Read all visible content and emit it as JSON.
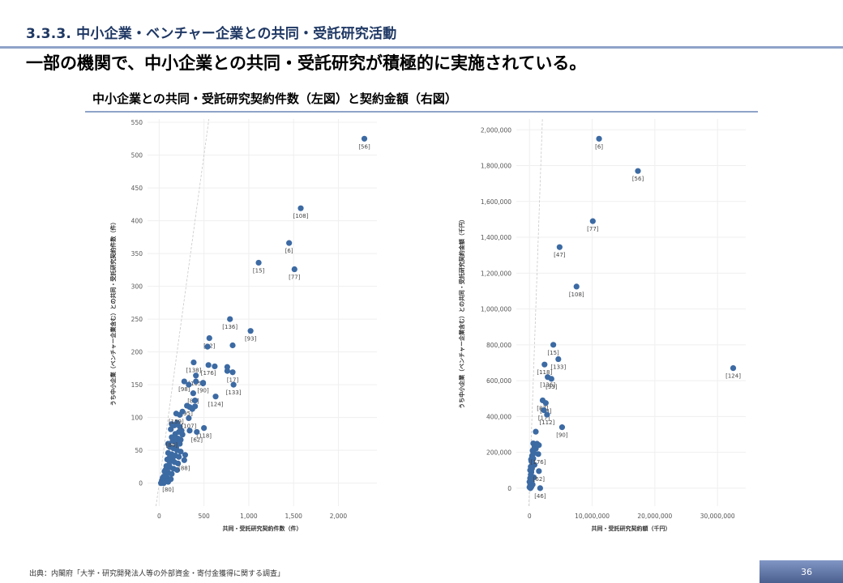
{
  "header": {
    "section_title": "3.3.3. 中小企業・ベンチャー企業との共同・受託研究活動",
    "headline": "一部の機関で、中小企業との共同・受託研究が積極的に実施されている。",
    "figure_caption": "中小企業との共同・受託研究契約件数（左図）と契約金額（右図）"
  },
  "footer": {
    "source": "出典：内閣府「大学・研究開発法人等の外部資金・寄付金獲得に関する調査」",
    "page_number": "36"
  },
  "colors": {
    "point": "#3c6aa3",
    "title": "#1f3864",
    "rule": "#8fa3c8"
  },
  "chart_data": [
    {
      "type": "scatter",
      "title": "",
      "xlabel": "共同・受託研究契約件数（件）",
      "ylabel": "うち中小企業（ベンチャー企業含む）との共同・受託研究契約件数（件）",
      "xlim": [
        -130,
        2430
      ],
      "ylim": [
        -35,
        555
      ],
      "xticks": [
        0,
        500,
        1000,
        1500,
        2000
      ],
      "xtick_labels": [
        "0",
        "500",
        "1,000",
        "1,500",
        "2,000"
      ],
      "yticks": [
        0,
        50,
        100,
        150,
        200,
        250,
        300,
        350,
        400,
        450,
        500,
        550
      ],
      "ytick_labels": [
        "0",
        "50",
        "100",
        "150",
        "200",
        "250",
        "300",
        "350",
        "400",
        "450",
        "500",
        "550"
      ],
      "grid": true,
      "reference_line": "diagonal",
      "labeled_points": [
        {
          "label": "[56]",
          "x": 2290,
          "y": 525
        },
        {
          "label": "[108]",
          "x": 1580,
          "y": 419
        },
        {
          "label": "[6]",
          "x": 1450,
          "y": 366
        },
        {
          "label": "[15]",
          "x": 1110,
          "y": 336
        },
        {
          "label": "[77]",
          "x": 1510,
          "y": 326
        },
        {
          "label": "[136]",
          "x": 790,
          "y": 250
        },
        {
          "label": "[93]",
          "x": 1020,
          "y": 232
        },
        {
          "label": "[52]",
          "x": 560,
          "y": 221
        },
        {
          "label": "",
          "x": 540,
          "y": 208
        },
        {
          "label": "",
          "x": 820,
          "y": 210
        },
        {
          "label": "[138]",
          "x": 385,
          "y": 184
        },
        {
          "label": "[176]",
          "x": 550,
          "y": 180
        },
        {
          "label": "",
          "x": 620,
          "y": 178
        },
        {
          "label": "",
          "x": 760,
          "y": 177
        },
        {
          "label": "[17]",
          "x": 820,
          "y": 169
        },
        {
          "label": "",
          "x": 760,
          "y": 171
        },
        {
          "label": "[105]",
          "x": 410,
          "y": 164
        },
        {
          "label": "[98]",
          "x": 280,
          "y": 155
        },
        {
          "label": "",
          "x": 330,
          "y": 150
        },
        {
          "label": "",
          "x": 410,
          "y": 155
        },
        {
          "label": "[133]",
          "x": 830,
          "y": 150
        },
        {
          "label": "",
          "x": 490,
          "y": 152
        },
        {
          "label": "[90]",
          "x": 490,
          "y": 153
        },
        {
          "label": "[89]",
          "x": 380,
          "y": 137
        },
        {
          "label": "[124]",
          "x": 630,
          "y": 132
        },
        {
          "label": "",
          "x": 400,
          "y": 126
        },
        {
          "label": "[95]",
          "x": 310,
          "y": 118
        },
        {
          "label": "",
          "x": 340,
          "y": 116
        },
        {
          "label": "",
          "x": 370,
          "y": 113
        },
        {
          "label": "",
          "x": 400,
          "y": 117
        },
        {
          "label": "[159]",
          "x": 190,
          "y": 106
        },
        {
          "label": "",
          "x": 230,
          "y": 104
        },
        {
          "label": "",
          "x": 260,
          "y": 109
        },
        {
          "label": "[107]",
          "x": 330,
          "y": 99
        },
        {
          "label": "[118]",
          "x": 500,
          "y": 84
        },
        {
          "label": "[62]",
          "x": 420,
          "y": 78
        },
        {
          "label": "",
          "x": 340,
          "y": 80
        },
        {
          "label": "[84]",
          "x": 140,
          "y": 70
        },
        {
          "label": "[88]",
          "x": 280,
          "y": 35
        },
        {
          "label": "",
          "x": 290,
          "y": 43
        },
        {
          "label": "[80]",
          "x": 100,
          "y": 2
        }
      ],
      "cluster_points": [
        [
          140,
          90
        ],
        [
          170,
          88
        ],
        [
          200,
          92
        ],
        [
          230,
          86
        ],
        [
          250,
          80
        ],
        [
          180,
          75
        ],
        [
          220,
          78
        ],
        [
          260,
          74
        ],
        [
          150,
          64
        ],
        [
          190,
          62
        ],
        [
          230,
          60
        ],
        [
          120,
          55
        ],
        [
          160,
          53
        ],
        [
          200,
          50
        ],
        [
          240,
          48
        ],
        [
          100,
          46
        ],
        [
          140,
          44
        ],
        [
          180,
          42
        ],
        [
          220,
          40
        ],
        [
          90,
          36
        ],
        [
          130,
          34
        ],
        [
          170,
          32
        ],
        [
          210,
          30
        ],
        [
          80,
          26
        ],
        [
          120,
          24
        ],
        [
          160,
          22
        ],
        [
          200,
          20
        ],
        [
          60,
          18
        ],
        [
          100,
          16
        ],
        [
          140,
          14
        ],
        [
          50,
          10
        ],
        [
          90,
          8
        ],
        [
          130,
          6
        ],
        [
          30,
          4
        ],
        [
          60,
          2
        ],
        [
          20,
          0
        ],
        [
          50,
          0
        ],
        [
          80,
          12
        ],
        [
          110,
          28
        ],
        [
          150,
          38
        ],
        [
          190,
          55
        ],
        [
          210,
          68
        ],
        [
          170,
          70
        ],
        [
          120,
          40
        ],
        [
          70,
          20
        ],
        [
          40,
          8
        ],
        [
          100,
          60
        ],
        [
          240,
          66
        ],
        [
          130,
          82
        ]
      ]
    },
    {
      "type": "scatter",
      "title": "",
      "xlabel": "共同・受託研究契約額（千円）",
      "ylabel": "うち中小企業（ベンチャー企業含む）との共同・受託研究契約金額（千円）",
      "xlim": [
        -2100000,
        34500000
      ],
      "ylim": [
        -100000,
        2060000
      ],
      "xticks": [
        0,
        10000000,
        20000000,
        30000000
      ],
      "xtick_labels": [
        "0",
        "10,000,000",
        "20,000,000",
        "30,000,000"
      ],
      "yticks": [
        0,
        200000,
        400000,
        600000,
        800000,
        1000000,
        1200000,
        1400000,
        1600000,
        1800000,
        2000000
      ],
      "ytick_labels": [
        "0",
        "200,000",
        "400,000",
        "600,000",
        "800,000",
        "1,000,000",
        "1,200,000",
        "1,400,000",
        "1,600,000",
        "1,800,000",
        "2,000,000"
      ],
      "grid": true,
      "reference_line": "diagonal",
      "labeled_points": [
        {
          "label": "[6]",
          "x": 11100000,
          "y": 1950000
        },
        {
          "label": "[56]",
          "x": 17300000,
          "y": 1770000
        },
        {
          "label": "[77]",
          "x": 10100000,
          "y": 1490000
        },
        {
          "label": "[47]",
          "x": 4800000,
          "y": 1345000
        },
        {
          "label": "[108]",
          "x": 7500000,
          "y": 1125000
        },
        {
          "label": "[124]",
          "x": 32500000,
          "y": 670000
        },
        {
          "label": "[15]",
          "x": 3800000,
          "y": 800000
        },
        {
          "label": "[133]",
          "x": 4600000,
          "y": 720000
        },
        {
          "label": "[118]",
          "x": 2400000,
          "y": 690000
        },
        {
          "label": "[136]",
          "x": 2900000,
          "y": 620000
        },
        {
          "label": "[93]",
          "x": 3500000,
          "y": 610000
        },
        {
          "label": "[87]",
          "x": 2100000,
          "y": 490000
        },
        {
          "label": "[33]",
          "x": 2600000,
          "y": 475000
        },
        {
          "label": "[17]",
          "x": 2300000,
          "y": 435000
        },
        {
          "label": "[112]",
          "x": 2800000,
          "y": 410000
        },
        {
          "label": "",
          "x": 1000000,
          "y": 315000
        },
        {
          "label": "[90]",
          "x": 5200000,
          "y": 340000
        },
        {
          "label": "[176]",
          "x": 1400000,
          "y": 190000
        },
        {
          "label": "[62]",
          "x": 1500000,
          "y": 95000
        },
        {
          "label": "[46]",
          "x": 1700000,
          "y": 0
        }
      ],
      "cluster_points": [
        [
          600000,
          250000
        ],
        [
          900000,
          245000
        ],
        [
          1200000,
          248000
        ],
        [
          1500000,
          240000
        ],
        [
          800000,
          230000
        ],
        [
          1100000,
          235000
        ],
        [
          500000,
          210000
        ],
        [
          700000,
          195000
        ],
        [
          400000,
          180000
        ],
        [
          600000,
          165000
        ],
        [
          300000,
          150000
        ],
        [
          500000,
          135000
        ],
        [
          200000,
          120000
        ],
        [
          400000,
          110000
        ],
        [
          100000,
          100000
        ],
        [
          300000,
          90000
        ],
        [
          200000,
          75000
        ],
        [
          400000,
          65000
        ],
        [
          100000,
          55000
        ],
        [
          300000,
          45000
        ],
        [
          0,
          35000
        ],
        [
          200000,
          25000
        ],
        [
          100000,
          15000
        ],
        [
          300000,
          8000
        ],
        [
          0,
          5000
        ],
        [
          150000,
          0
        ],
        [
          500000,
          20000
        ],
        [
          700000,
          60000
        ],
        [
          800000,
          130000
        ],
        [
          600000,
          200000
        ],
        [
          1000000,
          220000
        ],
        [
          250000,
          160000
        ],
        [
          350000,
          40000
        ]
      ]
    }
  ]
}
